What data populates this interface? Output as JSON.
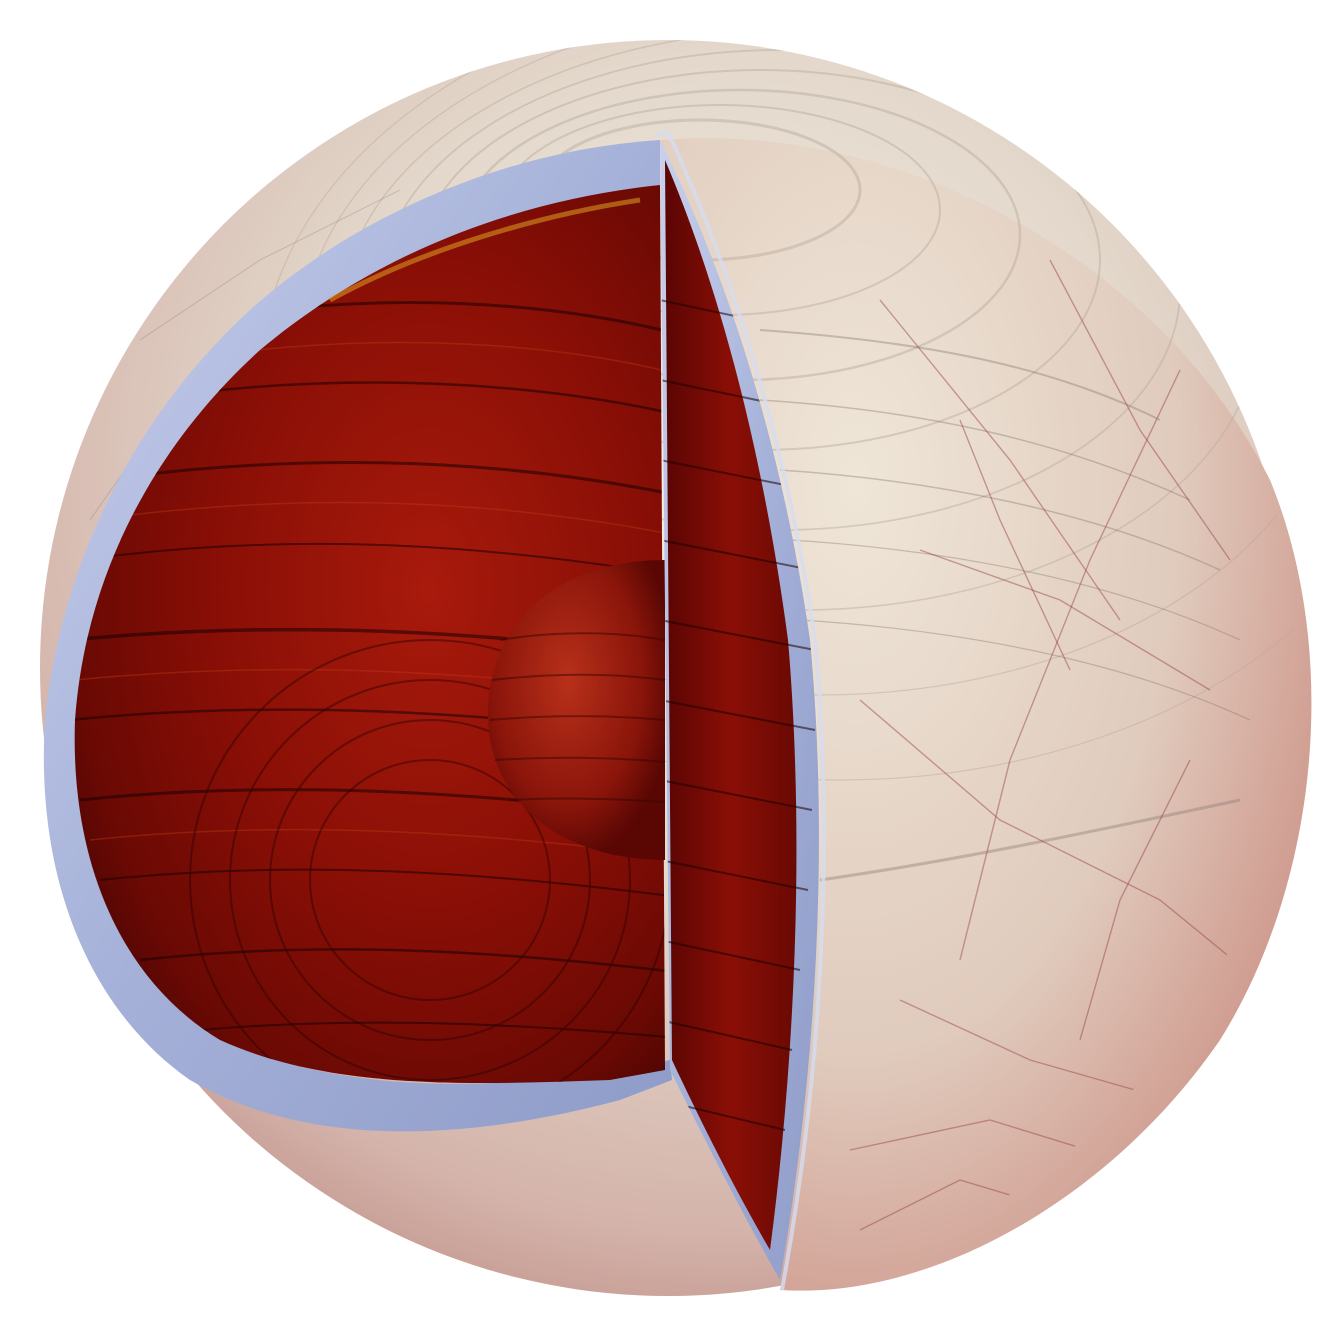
{
  "scene": {
    "subject": "cutaway-icy-moon-sphere",
    "colors": {
      "background": "#ffffff",
      "surface_light": "#ece6dc",
      "surface_mid": "#d9c9bf",
      "surface_reddish": "#c98a82",
      "crack_lines": "#9b4a52",
      "ice_shell": "#a9b3d8",
      "ice_shell_edge": "#c8cfe8",
      "ocean_interior": "#8a0f06",
      "ocean_dark": "#3a0402",
      "ocean_highlight": "#c8401a",
      "core": "#9a1a0c"
    }
  }
}
